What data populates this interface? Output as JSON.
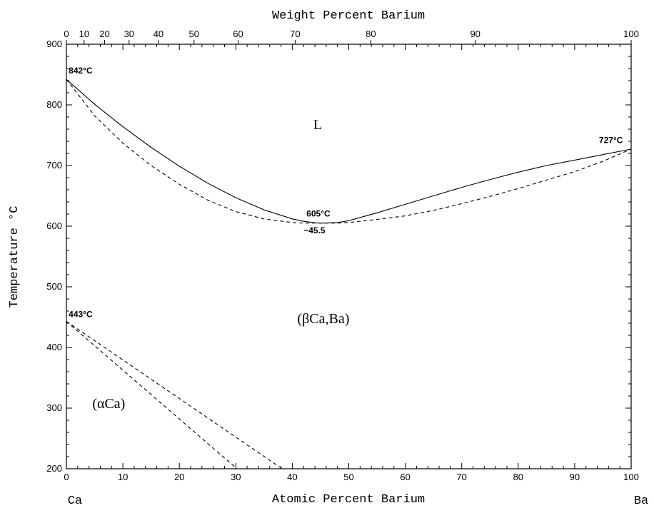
{
  "chart_data": {
    "type": "line",
    "title": "",
    "xlabel": "Atomic Percent Barium",
    "x2label": "Weight Percent Barium",
    "ylabel": "Temperature °C",
    "xlim": [
      0,
      100
    ],
    "ylim": [
      200,
      900
    ],
    "x_ticks": [
      0,
      10,
      20,
      30,
      40,
      50,
      60,
      70,
      80,
      90,
      100
    ],
    "y_ticks": [
      200,
      300,
      400,
      500,
      600,
      700,
      800,
      900
    ],
    "x2_ticks": [
      {
        "label": "0",
        "at": 0
      },
      {
        "label": "10",
        "at": 3.14
      },
      {
        "label": "20",
        "at": 6.76
      },
      {
        "label": "30",
        "at": 11.1
      },
      {
        "label": "40",
        "at": 16.3
      },
      {
        "label": "50",
        "at": 22.6
      },
      {
        "label": "60",
        "at": 30.4
      },
      {
        "label": "70",
        "at": 40.5
      },
      {
        "label": "80",
        "at": 53.9
      },
      {
        "label": "90",
        "at": 72.4
      },
      {
        "label": "100",
        "at": 100
      }
    ],
    "end_labels": {
      "left": "Ca",
      "right": "Ba"
    },
    "grid": false,
    "series": [
      {
        "style": "solid",
        "x": [
          0,
          5,
          10,
          15,
          20,
          25,
          30,
          35,
          40,
          42,
          44,
          45.5,
          48,
          50,
          55,
          60,
          65,
          70,
          75,
          80,
          85,
          90,
          95,
          100
        ],
        "y": [
          842,
          801,
          764,
          730,
          699,
          671,
          647,
          627,
          612,
          608,
          605.5,
          605,
          606,
          609,
          622,
          636,
          650,
          664,
          677,
          689,
          700,
          709,
          718,
          727
        ]
      },
      {
        "style": "dashed",
        "x": [
          0,
          5,
          10,
          15,
          20,
          25,
          30,
          35,
          40,
          42,
          44,
          45.5,
          48,
          50,
          55,
          60,
          65,
          70,
          75,
          80,
          85,
          90,
          95,
          100
        ],
        "y": [
          842,
          782,
          737,
          700,
          669,
          643,
          624,
          612,
          606,
          605,
          605,
          605,
          605,
          606,
          611,
          617,
          626,
          637,
          649,
          662,
          676,
          690,
          707,
          727
        ]
      },
      {
        "style": "dashed",
        "x": [
          0,
          30.2
        ],
        "y": [
          443,
          200
        ]
      },
      {
        "style": "dashed",
        "x": [
          0,
          38.2
        ],
        "y": [
          443,
          200
        ]
      }
    ],
    "annotations": [
      {
        "text": "842°C",
        "x": 0.4,
        "y": 852
      },
      {
        "text": "727°C",
        "x": 94.3,
        "y": 737
      },
      {
        "text": "605°C",
        "x": 42.5,
        "y": 616
      },
      {
        "text": "~45.5",
        "x": 42.0,
        "y": 588
      },
      {
        "text": "443°C",
        "x": 0.4,
        "y": 450
      }
    ],
    "phase_labels": [
      {
        "text": "L",
        "x": 44.5,
        "y": 760
      },
      {
        "text": "(βCa,Ba)",
        "x": 45.5,
        "y": 440
      },
      {
        "text": "(αCa)",
        "x": 7.5,
        "y": 300
      }
    ]
  }
}
